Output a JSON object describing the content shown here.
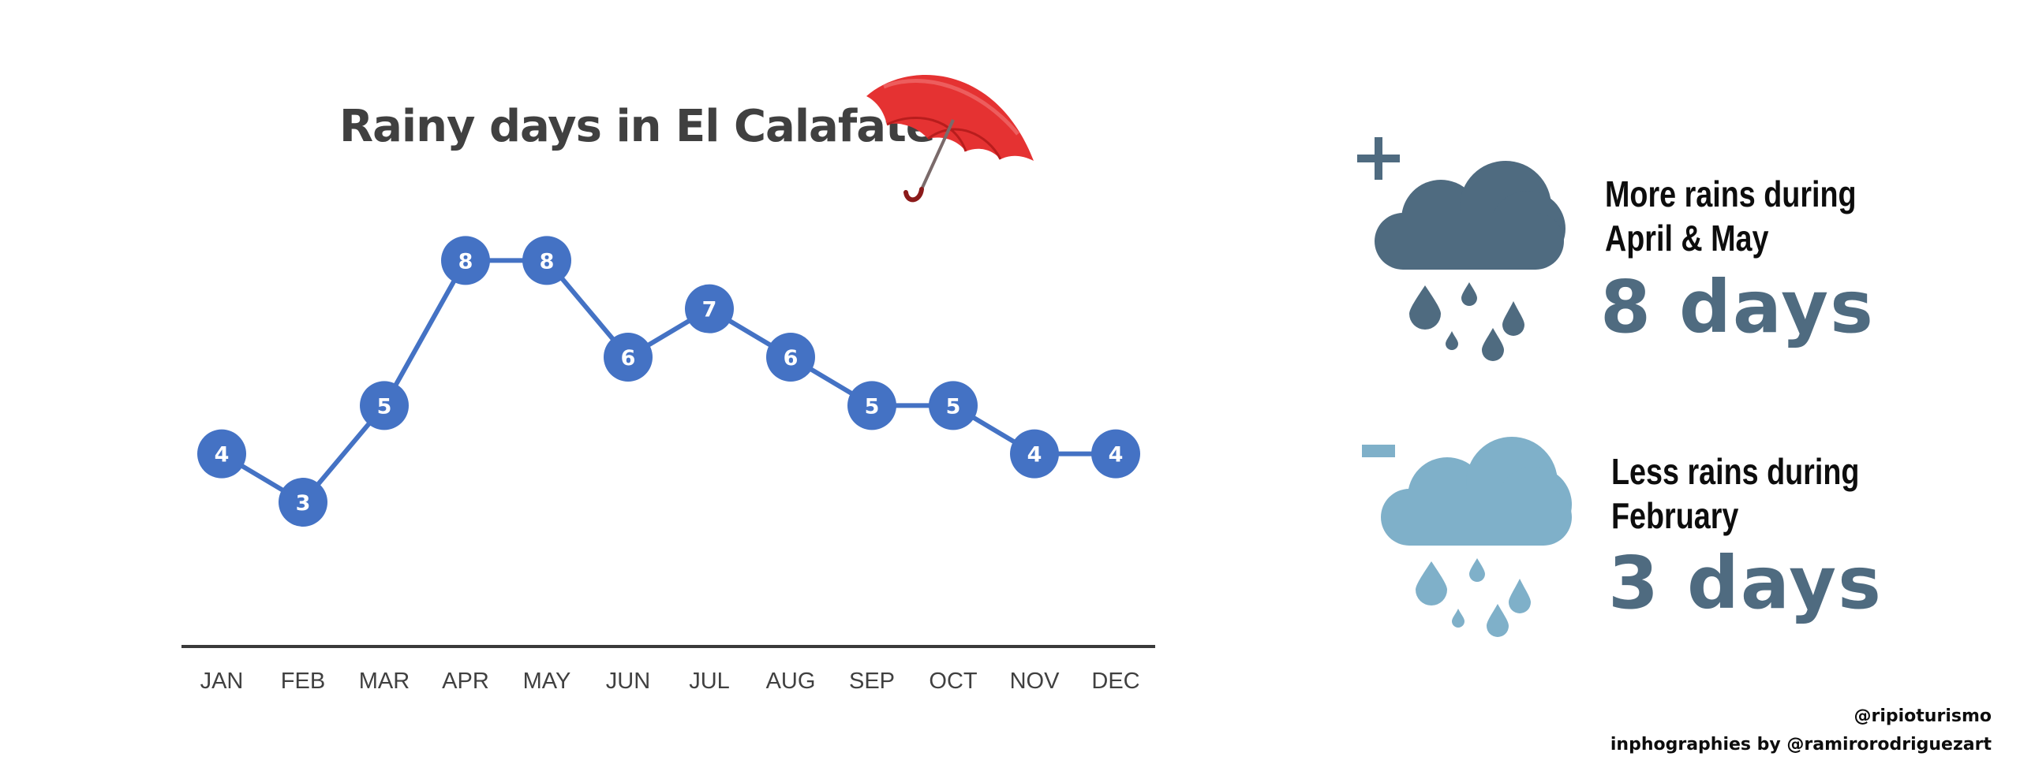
{
  "chart_data": {
    "type": "line",
    "title": "Rainy days in El Calafate",
    "categories": [
      "JAN",
      "FEB",
      "MAR",
      "APR",
      "MAY",
      "JUN",
      "JUL",
      "AUG",
      "SEP",
      "OCT",
      "NOV",
      "DEC"
    ],
    "values": [
      4,
      3,
      5,
      8,
      8,
      6,
      7,
      6,
      5,
      5,
      4,
      4
    ],
    "data_labels": true,
    "grid": false,
    "yaxis_visible": false,
    "line_color": "#4472c4"
  },
  "panels": {
    "more": {
      "heading_line1": "More rains during",
      "heading_line2": "April & May",
      "value": "8 days",
      "sign_icon": "plus-icon",
      "weather_icon": "rain-cloud-icon",
      "cloud_color": "#4f6b80"
    },
    "less": {
      "heading_line1": "Less rains during",
      "heading_line2": "February",
      "value": "3 days",
      "sign_icon": "minus-icon",
      "weather_icon": "rain-cloud-icon",
      "cloud_color": "#7fb0c9"
    }
  },
  "decoration": {
    "icon": "umbrella-icon",
    "color": "#e53232"
  },
  "credits": {
    "line1": "@ripioturismo",
    "line2": "inphographies by @ramirorodriguezart"
  }
}
